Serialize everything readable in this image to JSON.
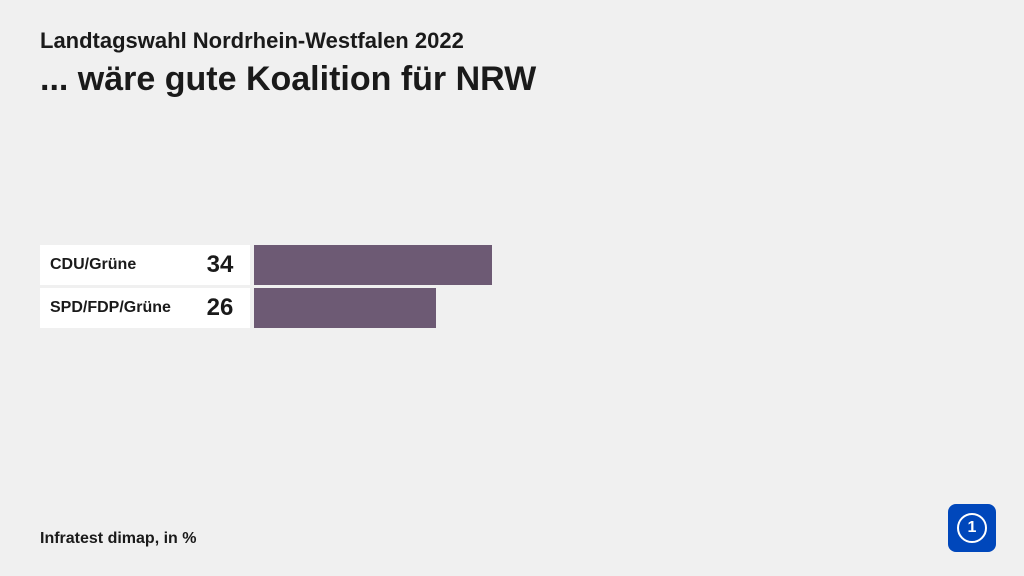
{
  "header": {
    "subtitle": "Landtagswahl Nordrhein-Westfalen 2022",
    "title": "... wäre gute Koalition für NRW"
  },
  "chart": {
    "type": "bar",
    "max_value": 100,
    "bar_pixel_scale": 7,
    "bar_color": "#6d5a74",
    "background_color": "#f0f0f0",
    "cell_background": "#ffffff",
    "text_color": "#1a1a1a",
    "label_fontsize": 16,
    "value_fontsize": 24,
    "rows": [
      {
        "label": "CDU/Grüne",
        "value": 34
      },
      {
        "label": "SPD/FDP/Grüne",
        "value": 26
      }
    ]
  },
  "footer": {
    "source": "Infratest dimap, in %"
  },
  "logo": {
    "background": "#0047bb",
    "text": "1"
  }
}
